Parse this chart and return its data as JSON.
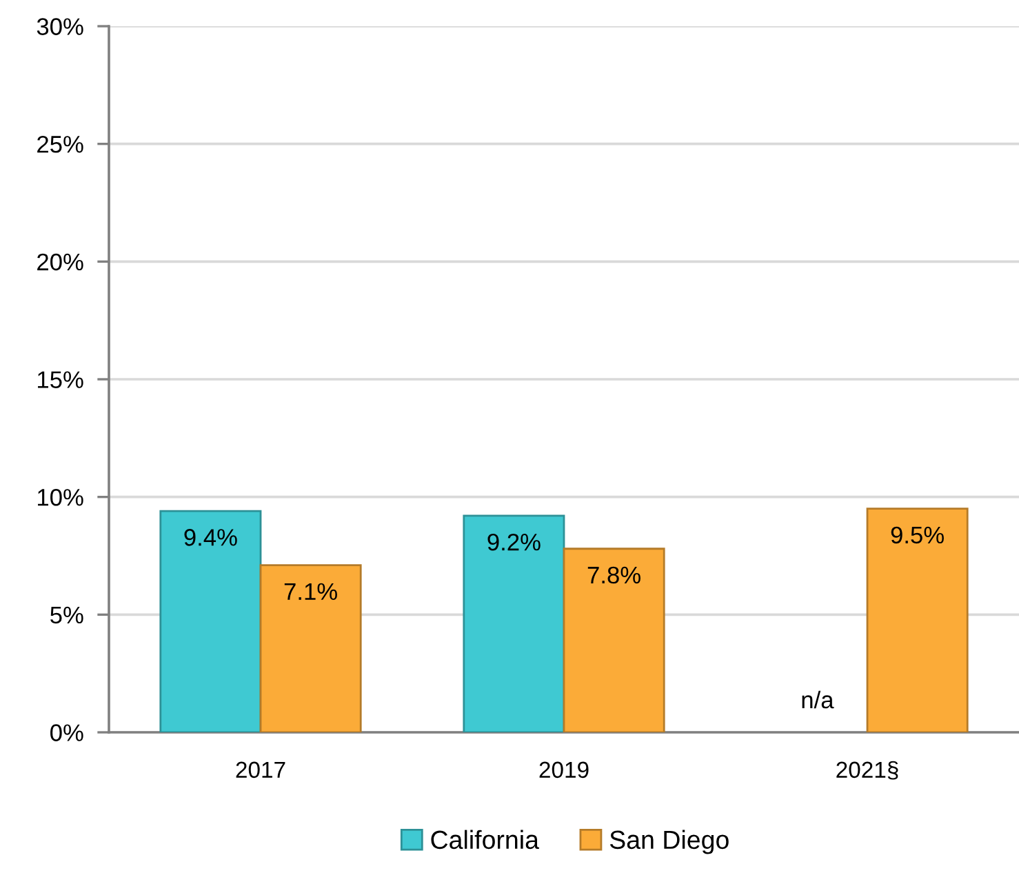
{
  "chart_data": {
    "type": "bar",
    "categories": [
      "2017",
      "2019",
      "2021§"
    ],
    "series": [
      {
        "name": "California",
        "color": "#3fc9d2",
        "values": [
          9.4,
          9.2,
          null
        ],
        "value_labels": [
          "9.4%",
          "9.2%",
          "n/a"
        ]
      },
      {
        "name": "San Diego",
        "color": "#fbab38",
        "values": [
          7.1,
          7.8,
          9.5
        ],
        "value_labels": [
          "7.1%",
          "7.8%",
          "9.5%"
        ]
      }
    ],
    "ylim": [
      0,
      30
    ],
    "yticks": [
      {
        "value": 0,
        "label": "0%"
      },
      {
        "value": 5,
        "label": "5%"
      },
      {
        "value": 10,
        "label": "10%"
      },
      {
        "value": 15,
        "label": "15%"
      },
      {
        "value": 20,
        "label": "20%"
      },
      {
        "value": 25,
        "label": "25%"
      },
      {
        "value": 30,
        "label": "30%"
      }
    ],
    "grid": "y",
    "legend": "bottom"
  }
}
